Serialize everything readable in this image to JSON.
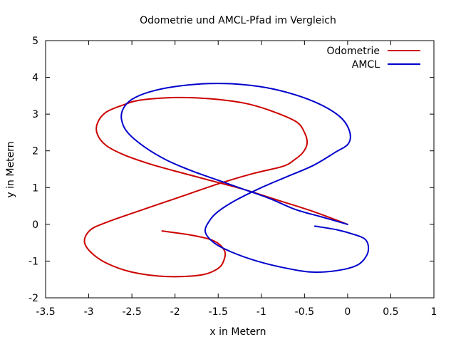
{
  "chart_data": {
    "type": "line",
    "title": "Odometrie und AMCL-Pfad im Vergleich",
    "xlabel": "x in Metern",
    "ylabel": "y in Metern",
    "xlim": [
      -3.5,
      1
    ],
    "ylim": [
      -2,
      5
    ],
    "xticks": [
      -3.5,
      -3,
      -2.5,
      -2,
      -1.5,
      -1,
      -0.5,
      0,
      0.5,
      1
    ],
    "xtick_labels": [
      "-3.5",
      "-3",
      "-2.5",
      "-2",
      "-1.5",
      "-1",
      "-0.5",
      "0",
      "0.5",
      "1"
    ],
    "yticks": [
      -2,
      -1,
      0,
      1,
      2,
      3,
      4,
      5
    ],
    "ytick_labels": [
      "-2",
      "-1",
      "0",
      "1",
      "2",
      "3",
      "4",
      "5"
    ],
    "grid": false,
    "legend_position": "top-right",
    "series": [
      {
        "name": "Odometrie",
        "color": "#cc0000",
        "points": [
          [
            0,
            0
          ],
          [
            -0.4,
            0.35
          ],
          [
            -0.8,
            0.65
          ],
          [
            -1.2,
            0.95
          ],
          [
            -1.6,
            1.2
          ],
          [
            -2.0,
            1.45
          ],
          [
            -2.3,
            1.65
          ],
          [
            -2.6,
            1.9
          ],
          [
            -2.8,
            2.15
          ],
          [
            -2.9,
            2.45
          ],
          [
            -2.9,
            2.75
          ],
          [
            -2.8,
            3.05
          ],
          [
            -2.6,
            3.25
          ],
          [
            -2.4,
            3.38
          ],
          [
            -2.0,
            3.45
          ],
          [
            -1.6,
            3.42
          ],
          [
            -1.2,
            3.3
          ],
          [
            -0.9,
            3.1
          ],
          [
            -0.6,
            2.8
          ],
          [
            -0.5,
            2.5
          ],
          [
            -0.47,
            2.2
          ],
          [
            -0.52,
            1.95
          ],
          [
            -0.62,
            1.75
          ],
          [
            -0.75,
            1.58
          ],
          [
            -1.1,
            1.38
          ],
          [
            -1.5,
            1.1
          ],
          [
            -2.0,
            0.7
          ],
          [
            -2.5,
            0.3
          ],
          [
            -2.8,
            0.05
          ],
          [
            -2.98,
            -0.15
          ],
          [
            -3.05,
            -0.45
          ],
          [
            -2.98,
            -0.75
          ],
          [
            -2.8,
            -1.05
          ],
          [
            -2.5,
            -1.3
          ],
          [
            -2.1,
            -1.42
          ],
          [
            -1.7,
            -1.38
          ],
          [
            -1.5,
            -1.2
          ],
          [
            -1.43,
            -0.95
          ],
          [
            -1.43,
            -0.7
          ],
          [
            -1.55,
            -0.45
          ],
          [
            -1.8,
            -0.3
          ],
          [
            -2.15,
            -0.18
          ]
        ]
      },
      {
        "name": "AMCL",
        "color": "#0000cc",
        "points": [
          [
            0,
            0
          ],
          [
            -0.3,
            0.2
          ],
          [
            -0.6,
            0.4
          ],
          [
            -0.9,
            0.7
          ],
          [
            -1.2,
            0.95
          ],
          [
            -1.5,
            1.2
          ],
          [
            -1.8,
            1.45
          ],
          [
            -2.1,
            1.75
          ],
          [
            -2.35,
            2.1
          ],
          [
            -2.55,
            2.5
          ],
          [
            -2.62,
            2.85
          ],
          [
            -2.6,
            3.15
          ],
          [
            -2.5,
            3.4
          ],
          [
            -2.3,
            3.6
          ],
          [
            -2.0,
            3.75
          ],
          [
            -1.6,
            3.83
          ],
          [
            -1.2,
            3.8
          ],
          [
            -0.8,
            3.65
          ],
          [
            -0.4,
            3.35
          ],
          [
            -0.1,
            2.95
          ],
          [
            0.02,
            2.55
          ],
          [
            0.01,
            2.2
          ],
          [
            -0.15,
            1.95
          ],
          [
            -0.4,
            1.6
          ],
          [
            -0.7,
            1.3
          ],
          [
            -1.0,
            1.0
          ],
          [
            -1.3,
            0.65
          ],
          [
            -1.5,
            0.35
          ],
          [
            -1.6,
            0.1
          ],
          [
            -1.65,
            -0.2
          ],
          [
            -1.55,
            -0.5
          ],
          [
            -1.35,
            -0.75
          ],
          [
            -1.05,
            -1.0
          ],
          [
            -0.7,
            -1.2
          ],
          [
            -0.4,
            -1.3
          ],
          [
            -0.1,
            -1.25
          ],
          [
            0.12,
            -1.1
          ],
          [
            0.22,
            -0.85
          ],
          [
            0.24,
            -0.6
          ],
          [
            0.2,
            -0.4
          ],
          [
            0.08,
            -0.28
          ],
          [
            -0.12,
            -0.15
          ],
          [
            -0.38,
            -0.05
          ]
        ]
      }
    ]
  }
}
